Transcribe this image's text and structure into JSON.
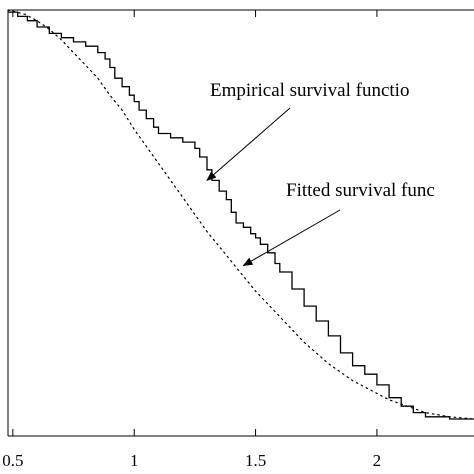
{
  "chart_data": {
    "type": "line",
    "title": "",
    "xlabel": "",
    "ylabel": "",
    "xlim": [
      0.48,
      2.4
    ],
    "ylim": [
      0,
      1
    ],
    "grid": false,
    "x_ticks": [
      {
        "value": 0.5,
        "label": "0.5"
      },
      {
        "value": 1,
        "label": "1"
      },
      {
        "value": 1.5,
        "label": "1.5"
      },
      {
        "value": 2,
        "label": "2"
      }
    ],
    "series": [
      {
        "name": "",
        "style": "solid-step",
        "points": [
          [
            0.48,
            0.995
          ],
          [
            0.52,
            0.985
          ],
          [
            0.56,
            0.975
          ],
          [
            0.6,
            0.96
          ],
          [
            0.65,
            0.945
          ],
          [
            0.7,
            0.935
          ],
          [
            0.75,
            0.925
          ],
          [
            0.8,
            0.915
          ],
          [
            0.85,
            0.9
          ],
          [
            0.88,
            0.885
          ],
          [
            0.9,
            0.865
          ],
          [
            0.92,
            0.84
          ],
          [
            0.95,
            0.82
          ],
          [
            0.98,
            0.8
          ],
          [
            1.0,
            0.785
          ],
          [
            1.02,
            0.765
          ],
          [
            1.05,
            0.745
          ],
          [
            1.08,
            0.725
          ],
          [
            1.1,
            0.71
          ],
          [
            1.15,
            0.7
          ],
          [
            1.2,
            0.69
          ],
          [
            1.25,
            0.675
          ],
          [
            1.27,
            0.655
          ],
          [
            1.3,
            0.625
          ],
          [
            1.32,
            0.6
          ],
          [
            1.35,
            0.575
          ],
          [
            1.38,
            0.555
          ],
          [
            1.4,
            0.525
          ],
          [
            1.42,
            0.5
          ],
          [
            1.45,
            0.49
          ],
          [
            1.48,
            0.475
          ],
          [
            1.5,
            0.465
          ],
          [
            1.52,
            0.45
          ],
          [
            1.55,
            0.43
          ],
          [
            1.58,
            0.405
          ],
          [
            1.6,
            0.385
          ],
          [
            1.65,
            0.345
          ],
          [
            1.7,
            0.305
          ],
          [
            1.75,
            0.27
          ],
          [
            1.8,
            0.235
          ],
          [
            1.85,
            0.195
          ],
          [
            1.9,
            0.165
          ],
          [
            1.95,
            0.145
          ],
          [
            2.0,
            0.12
          ],
          [
            2.05,
            0.09
          ],
          [
            2.1,
            0.07
          ],
          [
            2.15,
            0.055
          ],
          [
            2.2,
            0.045
          ],
          [
            2.3,
            0.04
          ],
          [
            2.4,
            0.04
          ]
        ]
      },
      {
        "name": "",
        "style": "dotted",
        "points": [
          [
            0.48,
            1.0
          ],
          [
            0.55,
            0.99
          ],
          [
            0.6,
            0.975
          ],
          [
            0.65,
            0.955
          ],
          [
            0.7,
            0.93
          ],
          [
            0.75,
            0.9
          ],
          [
            0.8,
            0.87
          ],
          [
            0.85,
            0.84
          ],
          [
            0.9,
            0.8
          ],
          [
            0.95,
            0.765
          ],
          [
            1.0,
            0.72
          ],
          [
            1.05,
            0.68
          ],
          [
            1.1,
            0.64
          ],
          [
            1.15,
            0.6
          ],
          [
            1.2,
            0.56
          ],
          [
            1.25,
            0.52
          ],
          [
            1.3,
            0.48
          ],
          [
            1.35,
            0.445
          ],
          [
            1.4,
            0.41
          ],
          [
            1.45,
            0.375
          ],
          [
            1.5,
            0.34
          ],
          [
            1.55,
            0.31
          ],
          [
            1.6,
            0.28
          ],
          [
            1.65,
            0.25
          ],
          [
            1.7,
            0.22
          ],
          [
            1.75,
            0.195
          ],
          [
            1.8,
            0.17
          ],
          [
            1.85,
            0.15
          ],
          [
            1.9,
            0.13
          ],
          [
            1.95,
            0.115
          ],
          [
            2.0,
            0.1
          ],
          [
            2.05,
            0.085
          ],
          [
            2.1,
            0.075
          ],
          [
            2.15,
            0.065
          ],
          [
            2.2,
            0.055
          ],
          [
            2.3,
            0.045
          ],
          [
            2.4,
            0.04
          ]
        ]
      }
    ],
    "annotations": [
      {
        "text": "Empirical survival functio",
        "arrow_to": [
          1.3,
          0.6
        ]
      },
      {
        "text": "Fitted survival func",
        "arrow_to": [
          1.45,
          0.4
        ]
      }
    ]
  }
}
